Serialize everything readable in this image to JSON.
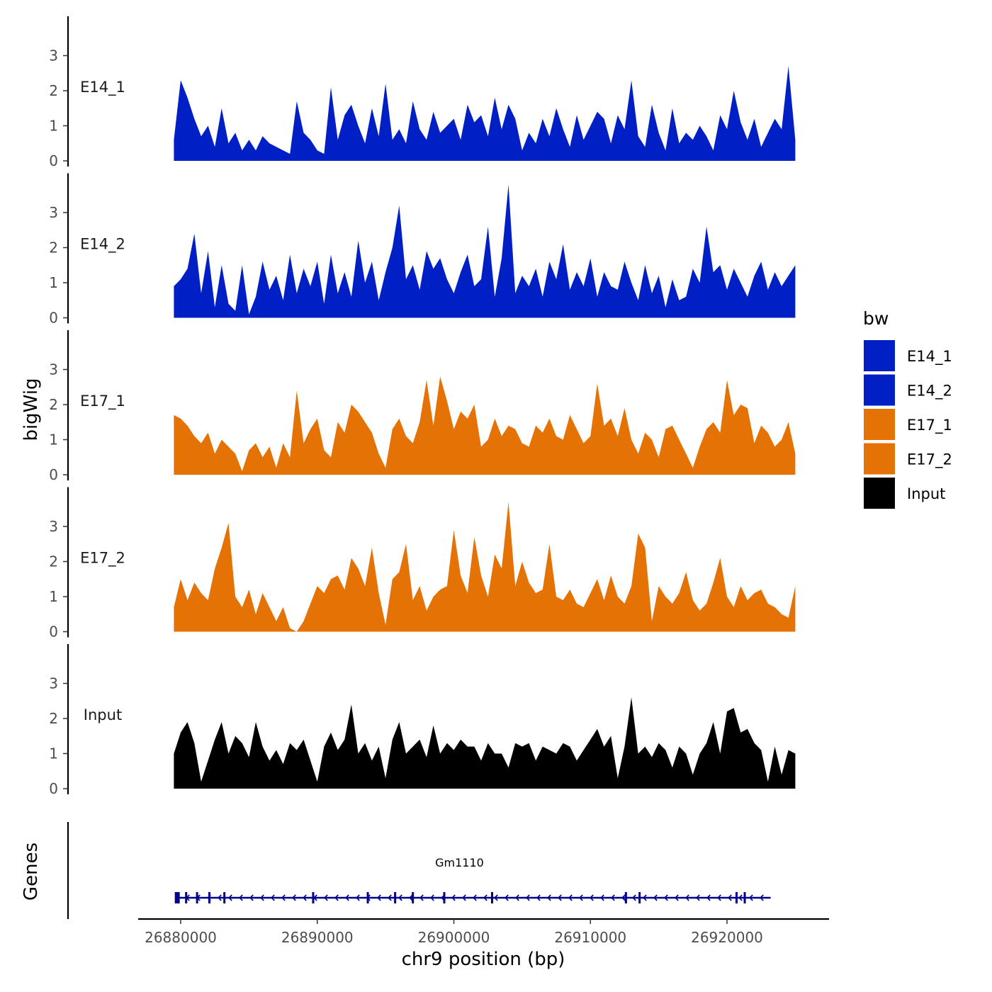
{
  "chart_data": {
    "type": "area",
    "x_range": [
      26879500,
      26925000
    ],
    "x_ticks": [
      26880000,
      26890000,
      26900000,
      26910000,
      26920000
    ],
    "x_tick_labels": [
      "26880000",
      "26890000",
      "26900000",
      "26910000",
      "26920000"
    ],
    "xlabel": "chr9 position (bp)",
    "ylabel": "bigWig",
    "ylim": [
      0,
      4
    ],
    "y_ticks": [
      0,
      1,
      2,
      3
    ],
    "y_tick_labels": [
      "0",
      "1",
      "2",
      "3"
    ],
    "legend": {
      "title": "bw",
      "position": "right",
      "entries": [
        {
          "label": "E14_1",
          "color": "#0020c6"
        },
        {
          "label": "E14_2",
          "color": "#0020c6"
        },
        {
          "label": "E17_1",
          "color": "#e57205"
        },
        {
          "label": "E17_2",
          "color": "#e57205"
        },
        {
          "label": "Input",
          "color": "#000000"
        }
      ]
    },
    "series": [
      {
        "name": "E14_1",
        "label": "E14_1",
        "color": "#0020c6",
        "x": [
          26879500,
          26880000,
          26880500,
          26881000,
          26881500,
          26882000,
          26882500,
          26883000,
          26883500,
          26884000,
          26884500,
          26885000,
          26885500,
          26886000,
          26886500,
          26887000,
          26887500,
          26888000,
          26888500,
          26889000,
          26889500,
          26890000,
          26890500,
          26891000,
          26891500,
          26892000,
          26892500,
          26893000,
          26893500,
          26894000,
          26894500,
          26895000,
          26895500,
          26896000,
          26896500,
          26897000,
          26897500,
          26898000,
          26898500,
          26899000,
          26899500,
          26900000,
          26900500,
          26901000,
          26901500,
          26902000,
          26902500,
          26903000,
          26903500,
          26904000,
          26904500,
          26905000,
          26905500,
          26906000,
          26906500,
          26907000,
          26907500,
          26908000,
          26908500,
          26909000,
          26909500,
          26910000,
          26910500,
          26911000,
          26911500,
          26912000,
          26912500,
          26913000,
          26913500,
          26914000,
          26914500,
          26915000,
          26915500,
          26916000,
          26916500,
          26917000,
          26917500,
          26918000,
          26918500,
          26919000,
          26919500,
          26920000,
          26920500,
          26921000,
          26921500,
          26922000,
          26922500,
          26923000,
          26923500,
          26924000,
          26924500,
          26925000
        ],
        "values": [
          0.6,
          2.3,
          1.8,
          1.2,
          0.7,
          1.0,
          0.4,
          1.5,
          0.5,
          0.8,
          0.3,
          0.6,
          0.3,
          0.7,
          0.5,
          0.4,
          0.3,
          0.2,
          1.7,
          0.8,
          0.6,
          0.3,
          0.2,
          2.1,
          0.6,
          1.3,
          1.6,
          1.0,
          0.5,
          1.5,
          0.7,
          2.2,
          0.6,
          0.9,
          0.5,
          1.7,
          0.9,
          0.6,
          1.4,
          0.8,
          1.0,
          1.2,
          0.6,
          1.6,
          1.1,
          1.3,
          0.7,
          1.8,
          0.9,
          1.6,
          1.2,
          0.3,
          0.8,
          0.5,
          1.2,
          0.7,
          1.5,
          0.9,
          0.4,
          1.3,
          0.6,
          1.0,
          1.4,
          1.2,
          0.5,
          1.3,
          0.9,
          2.3,
          0.7,
          0.4,
          1.6,
          0.8,
          0.3,
          1.5,
          0.5,
          0.8,
          0.6,
          1.0,
          0.7,
          0.3,
          1.3,
          0.9,
          2.0,
          1.1,
          0.6,
          1.2,
          0.4,
          0.8,
          1.2,
          0.9,
          2.7,
          0.6
        ]
      },
      {
        "name": "E14_2",
        "label": "E14_2",
        "color": "#0020c6",
        "x": [
          26879500,
          26880000,
          26880500,
          26881000,
          26881500,
          26882000,
          26882500,
          26883000,
          26883500,
          26884000,
          26884500,
          26885000,
          26885500,
          26886000,
          26886500,
          26887000,
          26887500,
          26888000,
          26888500,
          26889000,
          26889500,
          26890000,
          26890500,
          26891000,
          26891500,
          26892000,
          26892500,
          26893000,
          26893500,
          26894000,
          26894500,
          26895000,
          26895500,
          26896000,
          26896500,
          26897000,
          26897500,
          26898000,
          26898500,
          26899000,
          26899500,
          26900000,
          26900500,
          26901000,
          26901500,
          26902000,
          26902500,
          26903000,
          26903500,
          26904000,
          26904500,
          26905000,
          26905500,
          26906000,
          26906500,
          26907000,
          26907500,
          26908000,
          26908500,
          26909000,
          26909500,
          26910000,
          26910500,
          26911000,
          26911500,
          26912000,
          26912500,
          26913000,
          26913500,
          26914000,
          26914500,
          26915000,
          26915500,
          26916000,
          26916500,
          26917000,
          26917500,
          26918000,
          26918500,
          26919000,
          26919500,
          26920000,
          26920500,
          26921000,
          26921500,
          26922000,
          26922500,
          26923000,
          26923500,
          26924000,
          26924500,
          26925000
        ],
        "values": [
          0.9,
          1.1,
          1.4,
          2.4,
          0.7,
          1.9,
          0.3,
          1.5,
          0.4,
          0.2,
          1.5,
          0.1,
          0.6,
          1.6,
          0.8,
          1.2,
          0.5,
          1.8,
          0.7,
          1.4,
          0.9,
          1.6,
          0.4,
          1.8,
          0.7,
          1.3,
          0.6,
          2.2,
          1.0,
          1.6,
          0.5,
          1.3,
          2.0,
          3.2,
          1.1,
          1.5,
          0.8,
          1.9,
          1.4,
          1.7,
          1.1,
          0.7,
          1.3,
          1.8,
          0.9,
          1.1,
          2.6,
          0.6,
          1.7,
          3.8,
          0.7,
          1.2,
          0.9,
          1.4,
          0.6,
          1.6,
          1.1,
          2.1,
          0.8,
          1.3,
          0.9,
          1.7,
          0.6,
          1.3,
          0.9,
          0.8,
          1.6,
          1.0,
          0.5,
          1.5,
          0.7,
          1.2,
          0.3,
          1.1,
          0.5,
          0.6,
          1.4,
          1.0,
          2.6,
          1.3,
          1.5,
          0.8,
          1.4,
          1.0,
          0.6,
          1.2,
          1.6,
          0.8,
          1.3,
          0.9,
          1.2,
          1.5
        ]
      },
      {
        "name": "E17_1",
        "label": "E17_1",
        "color": "#e57205",
        "x": [
          26879500,
          26880000,
          26880500,
          26881000,
          26881500,
          26882000,
          26882500,
          26883000,
          26883500,
          26884000,
          26884500,
          26885000,
          26885500,
          26886000,
          26886500,
          26887000,
          26887500,
          26888000,
          26888500,
          26889000,
          26889500,
          26890000,
          26890500,
          26891000,
          26891500,
          26892000,
          26892500,
          26893000,
          26893500,
          26894000,
          26894500,
          26895000,
          26895500,
          26896000,
          26896500,
          26897000,
          26897500,
          26898000,
          26898500,
          26899000,
          26899500,
          26900000,
          26900500,
          26901000,
          26901500,
          26902000,
          26902500,
          26903000,
          26903500,
          26904000,
          26904500,
          26905000,
          26905500,
          26906000,
          26906500,
          26907000,
          26907500,
          26908000,
          26908500,
          26909000,
          26909500,
          26910000,
          26910500,
          26911000,
          26911500,
          26912000,
          26912500,
          26913000,
          26913500,
          26914000,
          26914500,
          26915000,
          26915500,
          26916000,
          26916500,
          26917000,
          26917500,
          26918000,
          26918500,
          26919000,
          26919500,
          26920000,
          26920500,
          26921000,
          26921500,
          26922000,
          26922500,
          26923000,
          26923500,
          26924000,
          26924500,
          26925000
        ],
        "values": [
          1.7,
          1.6,
          1.4,
          1.1,
          0.9,
          1.2,
          0.6,
          1.0,
          0.8,
          0.6,
          0.1,
          0.7,
          0.9,
          0.5,
          0.8,
          0.2,
          0.9,
          0.5,
          2.4,
          0.9,
          1.3,
          1.6,
          0.7,
          0.5,
          1.5,
          1.2,
          2.0,
          1.8,
          1.5,
          1.2,
          0.6,
          0.2,
          1.3,
          1.6,
          1.1,
          0.9,
          1.5,
          2.7,
          1.4,
          2.8,
          2.1,
          1.3,
          1.8,
          1.6,
          2.0,
          0.8,
          1.0,
          1.6,
          1.1,
          1.4,
          1.3,
          0.9,
          0.8,
          1.4,
          1.2,
          1.6,
          1.1,
          1.0,
          1.7,
          1.3,
          0.9,
          1.1,
          2.6,
          1.4,
          1.6,
          1.1,
          1.9,
          1.0,
          0.6,
          1.2,
          1.0,
          0.5,
          1.3,
          1.4,
          1.0,
          0.6,
          0.2,
          0.8,
          1.3,
          1.5,
          1.2,
          2.7,
          1.7,
          2.0,
          1.9,
          0.9,
          1.4,
          1.2,
          0.8,
          1.0,
          1.5,
          0.6
        ]
      },
      {
        "name": "E17_2",
        "label": "E17_2",
        "color": "#e57205",
        "x": [
          26879500,
          26880000,
          26880500,
          26881000,
          26881500,
          26882000,
          26882500,
          26883000,
          26883500,
          26884000,
          26884500,
          26885000,
          26885500,
          26886000,
          26886500,
          26887000,
          26887500,
          26888000,
          26888500,
          26889000,
          26889500,
          26890000,
          26890500,
          26891000,
          26891500,
          26892000,
          26892500,
          26893000,
          26893500,
          26894000,
          26894500,
          26895000,
          26895500,
          26896000,
          26896500,
          26897000,
          26897500,
          26898000,
          26898500,
          26899000,
          26899500,
          26900000,
          26900500,
          26901000,
          26901500,
          26902000,
          26902500,
          26903000,
          26903500,
          26904000,
          26904500,
          26905000,
          26905500,
          26906000,
          26906500,
          26907000,
          26907500,
          26908000,
          26908500,
          26909000,
          26909500,
          26910000,
          26910500,
          26911000,
          26911500,
          26912000,
          26912500,
          26913000,
          26913500,
          26914000,
          26914500,
          26915000,
          26915500,
          26916000,
          26916500,
          26917000,
          26917500,
          26918000,
          26918500,
          26919000,
          26919500,
          26920000,
          26920500,
          26921000,
          26921500,
          26922000,
          26922500,
          26923000,
          26923500,
          26924000,
          26924500,
          26925000
        ],
        "values": [
          0.7,
          1.5,
          0.9,
          1.4,
          1.1,
          0.9,
          1.8,
          2.4,
          3.1,
          1.0,
          0.7,
          1.2,
          0.5,
          1.1,
          0.7,
          0.3,
          0.7,
          0.1,
          0.0,
          0.3,
          0.8,
          1.3,
          1.1,
          1.5,
          1.6,
          1.2,
          2.1,
          1.8,
          1.3,
          2.4,
          1.1,
          0.2,
          1.5,
          1.7,
          2.5,
          0.9,
          1.3,
          0.6,
          1.0,
          1.2,
          1.3,
          2.9,
          1.6,
          1.1,
          2.7,
          1.6,
          1.0,
          2.2,
          1.8,
          3.7,
          1.3,
          2.0,
          1.4,
          1.1,
          1.2,
          2.5,
          1.0,
          0.9,
          1.2,
          0.8,
          0.7,
          1.1,
          1.5,
          0.9,
          1.6,
          1.0,
          0.8,
          1.3,
          2.8,
          2.4,
          0.3,
          1.3,
          1.0,
          0.8,
          1.1,
          1.7,
          0.9,
          0.6,
          0.8,
          1.4,
          2.1,
          1.0,
          0.7,
          1.3,
          0.9,
          1.1,
          1.2,
          0.8,
          0.7,
          0.5,
          0.4,
          1.3
        ]
      },
      {
        "name": "Input",
        "label": "Input",
        "color": "#000000",
        "x": [
          26879500,
          26880000,
          26880500,
          26881000,
          26881500,
          26882000,
          26882500,
          26883000,
          26883500,
          26884000,
          26884500,
          26885000,
          26885500,
          26886000,
          26886500,
          26887000,
          26887500,
          26888000,
          26888500,
          26889000,
          26889500,
          26890000,
          26890500,
          26891000,
          26891500,
          26892000,
          26892500,
          26893000,
          26893500,
          26894000,
          26894500,
          26895000,
          26895500,
          26896000,
          26896500,
          26897000,
          26897500,
          26898000,
          26898500,
          26899000,
          26899500,
          26900000,
          26900500,
          26901000,
          26901500,
          26902000,
          26902500,
          26903000,
          26903500,
          26904000,
          26904500,
          26905000,
          26905500,
          26906000,
          26906500,
          26907000,
          26907500,
          26908000,
          26908500,
          26909000,
          26909500,
          26910000,
          26910500,
          26911000,
          26911500,
          26912000,
          26912500,
          26913000,
          26913500,
          26914000,
          26914500,
          26915000,
          26915500,
          26916000,
          26916500,
          26917000,
          26917500,
          26918000,
          26918500,
          26919000,
          26919500,
          26920000,
          26920500,
          26921000,
          26921500,
          26922000,
          26922500,
          26923000,
          26923500,
          26924000,
          26924500,
          26925000
        ],
        "values": [
          1.0,
          1.6,
          1.9,
          1.3,
          0.2,
          0.8,
          1.4,
          1.9,
          1.0,
          1.5,
          1.3,
          0.9,
          1.9,
          1.2,
          0.8,
          1.1,
          0.7,
          1.3,
          1.1,
          1.4,
          0.8,
          0.2,
          1.2,
          1.6,
          1.1,
          1.4,
          2.4,
          1.0,
          1.3,
          0.8,
          1.2,
          0.3,
          1.4,
          1.9,
          1.0,
          1.2,
          1.4,
          0.9,
          1.8,
          1.0,
          1.3,
          1.1,
          1.4,
          1.2,
          1.2,
          0.8,
          1.3,
          1.0,
          1.0,
          0.6,
          1.3,
          1.2,
          1.3,
          0.8,
          1.2,
          1.1,
          1.0,
          1.3,
          1.2,
          0.8,
          1.1,
          1.4,
          1.7,
          1.2,
          1.5,
          0.3,
          1.2,
          2.6,
          1.0,
          1.2,
          0.9,
          1.3,
          1.1,
          0.6,
          1.2,
          1.0,
          0.4,
          1.0,
          1.3,
          1.9,
          1.0,
          2.2,
          2.3,
          1.6,
          1.7,
          1.3,
          1.1,
          0.2,
          1.2,
          0.4,
          1.1,
          1.0
        ]
      }
    ],
    "genes": {
      "panel_label": "Genes",
      "items": [
        {
          "name": "Gm1110",
          "start": 26879700,
          "end": 26923200,
          "strand": "-",
          "color": "#00008b",
          "exons": [
            26879750,
            26880400,
            26881200,
            26882100,
            26883200,
            26889700,
            26893700,
            26895700,
            26897000,
            26899300,
            26902800,
            26912600,
            26913600,
            26920700,
            26921300
          ]
        }
      ]
    }
  }
}
